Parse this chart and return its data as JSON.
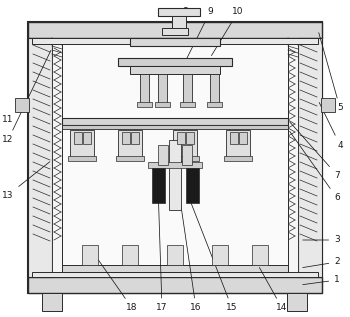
{
  "background_color": "#ffffff",
  "line_color": "#2a2a2a",
  "label_color": "#1a1a1a",
  "figsize": [
    3.5,
    3.17
  ],
  "dpi": 100
}
